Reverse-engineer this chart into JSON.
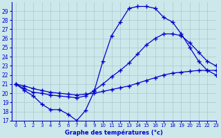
{
  "title": "Graphe des températures (°c)",
  "background_color": "#cce8ea",
  "grid_color": "#aac8cc",
  "line_color": "#0000cc",
  "xlim": [
    -0.5,
    23
  ],
  "ylim": [
    17,
    30
  ],
  "yticks": [
    17,
    18,
    19,
    20,
    21,
    22,
    23,
    24,
    25,
    26,
    27,
    28,
    29
  ],
  "xticks": [
    0,
    1,
    2,
    3,
    4,
    5,
    6,
    7,
    8,
    9,
    10,
    11,
    12,
    13,
    14,
    15,
    16,
    17,
    18,
    19,
    20,
    21,
    22,
    23
  ],
  "series": [
    {
      "x": [
        0,
        1,
        2,
        3,
        4,
        5,
        6,
        7,
        8,
        9,
        10,
        11,
        12,
        13,
        14,
        15,
        16,
        17,
        18,
        19,
        20,
        21,
        22,
        23
      ],
      "y": [
        21.0,
        20.3,
        19.7,
        18.8,
        18.2,
        18.2,
        17.7,
        17.0,
        18.1,
        20.2,
        23.5,
        26.3,
        27.8,
        29.3,
        29.5,
        29.5,
        29.3,
        28.3,
        27.8,
        26.5,
        25.0,
        23.5,
        22.5,
        22.0
      ]
    },
    {
      "x": [
        0,
        1,
        2,
        3,
        4,
        5,
        6,
        7,
        8,
        9,
        10,
        11,
        12,
        13,
        14,
        15,
        16,
        17,
        18,
        19,
        20,
        21,
        22,
        23
      ],
      "y": [
        21.0,
        20.5,
        20.1,
        20.0,
        19.8,
        19.7,
        19.6,
        19.5,
        19.7,
        20.3,
        21.0,
        21.8,
        22.5,
        23.3,
        24.3,
        25.3,
        26.0,
        26.5,
        26.5,
        26.3,
        25.5,
        24.5,
        23.5,
        23.0
      ]
    },
    {
      "x": [
        0,
        1,
        2,
        3,
        4,
        5,
        6,
        7,
        8,
        9,
        10,
        11,
        12,
        13,
        14,
        15,
        16,
        17,
        18,
        19,
        20,
        21,
        22,
        23
      ],
      "y": [
        21.0,
        20.8,
        20.5,
        20.3,
        20.1,
        20.0,
        19.9,
        19.8,
        19.9,
        20.0,
        20.2,
        20.4,
        20.6,
        20.8,
        21.1,
        21.4,
        21.7,
        22.0,
        22.2,
        22.3,
        22.4,
        22.5,
        22.5,
        22.5
      ]
    }
  ]
}
